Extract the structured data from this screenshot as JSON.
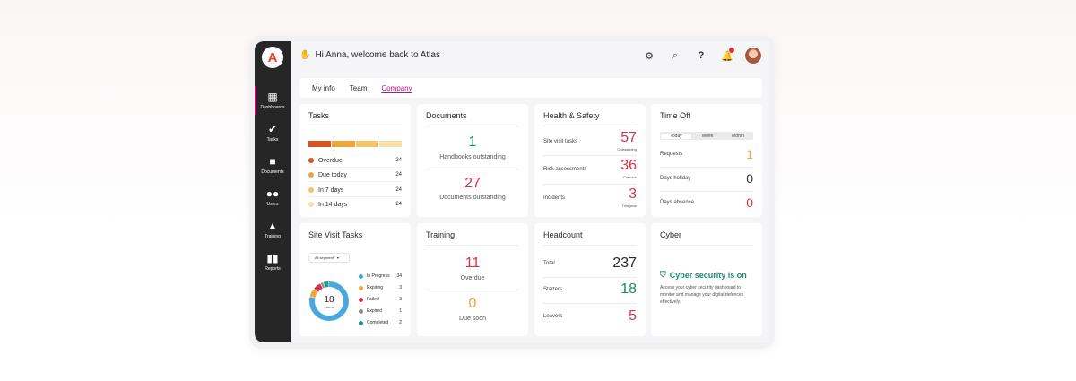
{
  "app": {
    "logo_letter": "A",
    "brand_color": "#e8442b"
  },
  "sidebar": {
    "items": [
      {
        "label": "Dashboards",
        "icon": "dashboard-icon",
        "active": true
      },
      {
        "label": "Tasks",
        "icon": "check-icon"
      },
      {
        "label": "Documents",
        "icon": "folder-icon"
      },
      {
        "label": "Users",
        "icon": "users-icon"
      },
      {
        "label": "Training",
        "icon": "graduation-cap-icon"
      },
      {
        "label": "Reports",
        "icon": "bar-chart-icon"
      }
    ]
  },
  "header": {
    "greeting": "Hi Anna, welcome back to Atlas",
    "icons": [
      "org-icon",
      "search-icon",
      "help-icon",
      "bell-icon"
    ]
  },
  "tabs": [
    {
      "label": "My info"
    },
    {
      "label": "Team"
    },
    {
      "label": "Company",
      "active": true
    }
  ],
  "tasks": {
    "title": "Tasks",
    "rows": [
      {
        "label": "Overdue",
        "count": "24",
        "color": "#d9531e"
      },
      {
        "label": "Due today",
        "count": "24",
        "color": "#f0a53a"
      },
      {
        "label": "In 7 days",
        "count": "24",
        "color": "#f6c366"
      },
      {
        "label": "In 14 days",
        "count": "24",
        "color": "#f8dfaa"
      }
    ]
  },
  "documents": {
    "title": "Documents",
    "a_value": "1",
    "a_label": "Handbooks outstanding",
    "a_color": "#1e8a6e",
    "b_value": "27",
    "b_label": "Documents outstanding",
    "b_color": "#d6334a"
  },
  "health": {
    "title": "Health & Safety",
    "rows": [
      {
        "label": "Site visit tasks",
        "value": "57",
        "sub": "Outstanding"
      },
      {
        "label": "Risk assessments",
        "value": "36",
        "sub": "Overdue"
      },
      {
        "label": "Incidents",
        "value": "3",
        "sub": "This year"
      }
    ],
    "color": "#d6334a"
  },
  "timeoff": {
    "title": "Time Off",
    "segments": [
      "Today",
      "Week",
      "Month"
    ],
    "rows": [
      {
        "label": "Requests",
        "value": "1",
        "color": "#f0a53a"
      },
      {
        "label": "Days holiday",
        "value": "0",
        "color": "#2b2b2b"
      },
      {
        "label": "Days absence",
        "value": "0",
        "color": "#d6334a"
      }
    ]
  },
  "site_visit": {
    "title": "Site Visit Tasks",
    "dropdown": "All segment",
    "donut_value": "18",
    "donut_label": "Latest",
    "legend": [
      {
        "label": "In Progress",
        "count": "34",
        "color": "#4aa8e0"
      },
      {
        "label": "Expiring",
        "count": "3",
        "color": "#f0a53a"
      },
      {
        "label": "Failed",
        "count": "3",
        "color": "#d6334a"
      },
      {
        "label": "Expired",
        "count": "1",
        "color": "#8a8a8a"
      },
      {
        "label": "Completed",
        "count": "2",
        "color": "#1e9e84"
      }
    ]
  },
  "training": {
    "title": "Training",
    "a_value": "11",
    "a_label": "Overdue",
    "a_color": "#d6334a",
    "b_value": "0",
    "b_label": "Due soon",
    "b_color": "#f0a53a"
  },
  "headcount": {
    "title": "Headcount",
    "rows": [
      {
        "label": "Total",
        "value": "237",
        "color": "#2b2b2b"
      },
      {
        "label": "Starters",
        "value": "18",
        "color": "#1e8a6e"
      },
      {
        "label": "Leavers",
        "value": "5",
        "color": "#d6334a"
      }
    ]
  },
  "cyber": {
    "title": "Cyber",
    "status": "Cyber security is on",
    "text": "Access your cyber security dashboard to monitor and manage your digital defences effectively."
  }
}
